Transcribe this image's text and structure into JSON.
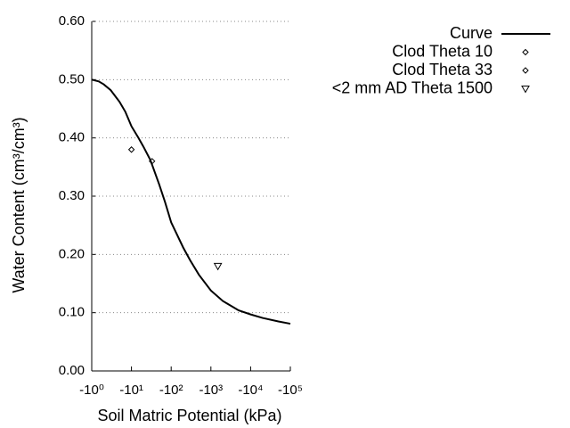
{
  "chart_data": {
    "type": "line",
    "xlabel": "Soil Matric Potential (kPa)",
    "ylabel": "Water Content (cm³/cm³)",
    "xscale": "log",
    "xlim": [
      1,
      100000
    ],
    "xticks": [
      {
        "value": 1,
        "label": "-10⁰"
      },
      {
        "value": 10,
        "label": "-10¹"
      },
      {
        "value": 100,
        "label": "-10²"
      },
      {
        "value": 1000,
        "label": "-10³"
      },
      {
        "value": 10000,
        "label": "-10⁴"
      },
      {
        "value": 100000,
        "label": "-10⁵"
      }
    ],
    "ylim": [
      0,
      0.6
    ],
    "yticks": [
      {
        "value": 0,
        "label": "0.00"
      },
      {
        "value": 0.1,
        "label": "0.10"
      },
      {
        "value": 0.2,
        "label": "0.20"
      },
      {
        "value": 0.3,
        "label": "0.30"
      },
      {
        "value": 0.4,
        "label": "0.40"
      },
      {
        "value": 0.5,
        "label": "0.50"
      },
      {
        "value": 0.6,
        "label": "0.60"
      }
    ],
    "grid": true,
    "legend": "top-right",
    "series": [
      {
        "name": "Curve",
        "color": "#000000",
        "marker": "line",
        "x": [
          1,
          1.5,
          2,
          3,
          5,
          7,
          10,
          15,
          20,
          30,
          50,
          70,
          100,
          200,
          300,
          500,
          1000,
          2000,
          5000,
          10000,
          20000,
          50000,
          100000
        ],
        "values": [
          0.5,
          0.497,
          0.492,
          0.482,
          0.462,
          0.445,
          0.42,
          0.4,
          0.385,
          0.362,
          0.32,
          0.29,
          0.255,
          0.212,
          0.19,
          0.165,
          0.138,
          0.12,
          0.104,
          0.097,
          0.091,
          0.085,
          0.081
        ]
      },
      {
        "name": "Clod Theta 10",
        "color": "#000000",
        "marker": "diamond",
        "x": [
          10
        ],
        "values": [
          0.38
        ]
      },
      {
        "name": "Clod Theta 33",
        "color": "#000000",
        "marker": "diamond",
        "x": [
          33
        ],
        "values": [
          0.36
        ]
      },
      {
        "name": "<2 mm AD Theta 1500",
        "color": "#000000",
        "marker": "triangle-down",
        "x": [
          1500
        ],
        "values": [
          0.18
        ]
      }
    ]
  }
}
